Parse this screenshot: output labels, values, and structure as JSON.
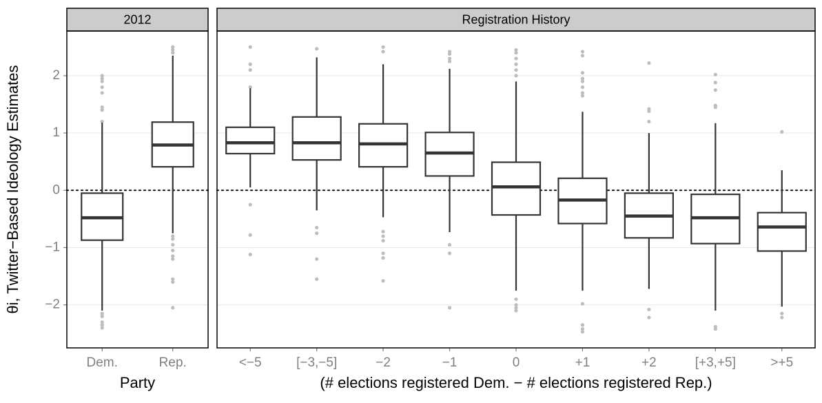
{
  "chart_data": [
    {
      "type": "box",
      "strip": "2012",
      "xlabel": "Party",
      "ylabel": "θi, Twitter−Based Ideology Estimates",
      "categories": [
        "Dem.",
        "Rep."
      ],
      "ylim": [
        -2.75,
        2.78
      ],
      "yticks": [
        {
          "value": -2,
          "label": "−2"
        },
        {
          "value": -1,
          "label": "−1"
        },
        0,
        1,
        2
      ],
      "hline": 0,
      "grid": true,
      "box_color": "#333333",
      "flier_color": "#bdbdbd",
      "boxes": [
        {
          "whislo": -2.1,
          "q1": -0.87,
          "med": -0.48,
          "q3": -0.05,
          "whishi": 1.18,
          "fliers": [
            2.0,
            1.95,
            1.9,
            1.8,
            1.7,
            1.45,
            1.4,
            1.2,
            -2.15,
            -2.2,
            -2.3,
            -2.35,
            -2.4
          ]
        },
        {
          "whislo": -0.75,
          "q1": 0.41,
          "med": 0.79,
          "q3": 1.19,
          "whishi": 2.35,
          "fliers": [
            2.4,
            2.45,
            2.5,
            -0.8,
            -0.85,
            -0.95,
            -1.05,
            -1.15,
            -1.2,
            -1.55,
            -1.6,
            -2.05
          ]
        }
      ]
    },
    {
      "type": "box",
      "strip": "Registration History",
      "xlabel": "(# elections registered Dem. − # elections registered Rep.)",
      "categories": [
        "<−5",
        "[−3,−5]",
        "−2",
        "−1",
        "0",
        "+1",
        "+2",
        "[+3,+5]",
        ">+5"
      ],
      "ylim": [
        -2.75,
        2.78
      ],
      "yticks": [
        -2,
        -1,
        0,
        1,
        2
      ],
      "hline": 0,
      "grid": true,
      "box_color": "#333333",
      "flier_color": "#bdbdbd",
      "boxes": [
        {
          "whislo": 0.05,
          "q1": 0.64,
          "med": 0.83,
          "q3": 1.1,
          "whishi": 1.78,
          "fliers": [
            2.5,
            2.2,
            2.1,
            1.8,
            -0.25,
            -0.78,
            -1.12
          ]
        },
        {
          "whislo": -0.35,
          "q1": 0.53,
          "med": 0.83,
          "q3": 1.28,
          "whishi": 2.32,
          "fliers": [
            2.47,
            -0.65,
            -0.75,
            -1.2,
            -1.55
          ]
        },
        {
          "whislo": -0.47,
          "q1": 0.41,
          "med": 0.81,
          "q3": 1.16,
          "whishi": 2.2,
          "fliers": [
            2.5,
            2.42,
            -0.72,
            -0.8,
            -0.88,
            -1.1,
            -1.18,
            -1.58
          ]
        },
        {
          "whislo": -0.73,
          "q1": 0.25,
          "med": 0.65,
          "q3": 1.01,
          "whishi": 2.12,
          "fliers": [
            2.42,
            2.38,
            2.3,
            2.25,
            -0.95,
            -1.1,
            -2.05
          ]
        },
        {
          "whislo": -1.75,
          "q1": -0.43,
          "med": 0.06,
          "q3": 0.49,
          "whishi": 1.9,
          "fliers": [
            2.45,
            2.4,
            2.3,
            2.2,
            2.1,
            2.0,
            -1.9,
            -2.0,
            -2.05,
            -2.1
          ]
        },
        {
          "whislo": -1.75,
          "q1": -0.58,
          "med": -0.17,
          "q3": 0.21,
          "whishi": 1.37,
          "fliers": [
            2.42,
            2.35,
            2.05,
            1.95,
            1.9,
            1.8,
            1.7,
            1.65,
            -1.98,
            -2.35,
            -2.42,
            -2.47
          ]
        },
        {
          "whislo": -1.72,
          "q1": -0.83,
          "med": -0.45,
          "q3": -0.05,
          "whishi": 1.0,
          "fliers": [
            2.22,
            1.42,
            1.38,
            1.2,
            -2.08,
            -2.22
          ]
        },
        {
          "whislo": -2.1,
          "q1": -0.93,
          "med": -0.48,
          "q3": -0.07,
          "whishi": 1.17,
          "fliers": [
            2.02,
            1.88,
            1.75,
            1.48,
            1.45,
            -2.38,
            -2.42
          ]
        },
        {
          "whislo": -2.03,
          "q1": -1.06,
          "med": -0.64,
          "q3": -0.39,
          "whishi": 0.35,
          "fliers": [
            1.02,
            -2.15,
            -2.22
          ]
        }
      ]
    }
  ]
}
